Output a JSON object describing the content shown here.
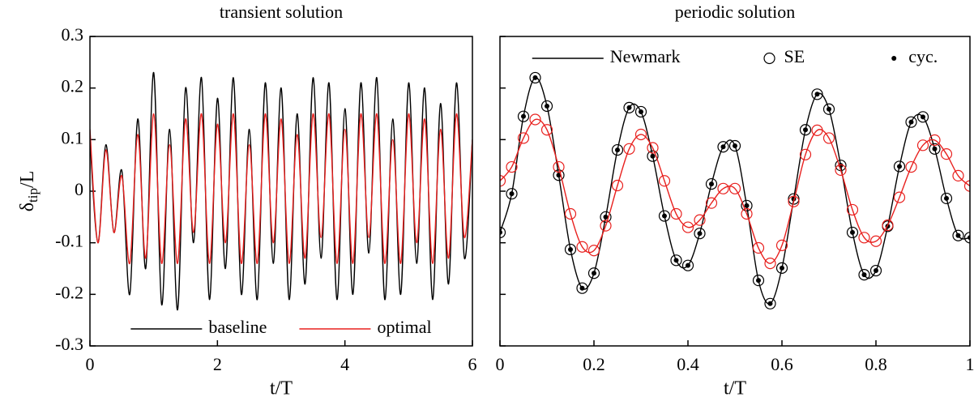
{
  "chart_data": [
    {
      "type": "line",
      "title": "transient solution",
      "xlabel": "t/T",
      "ylabel": {
        "symbol": "δ",
        "sub": "tip",
        "rest": "/L"
      },
      "xlim": [
        0,
        6
      ],
      "xticks": [
        0,
        2,
        4,
        6
      ],
      "ylim": [
        -0.3,
        0.3
      ],
      "yticks": [
        -0.3,
        -0.2,
        -0.1,
        0,
        0.1,
        0.2,
        0.3
      ],
      "legend": "lower center",
      "x": [
        0,
        0.125,
        0.25,
        0.375,
        0.5,
        0.625,
        0.75,
        0.875,
        1,
        1.125,
        1.25,
        1.375,
        1.5,
        1.625,
        1.75,
        1.875,
        2,
        2.125,
        2.25,
        2.375,
        2.5,
        2.625,
        2.75,
        2.875,
        3,
        3.125,
        3.25,
        3.375,
        3.5,
        3.625,
        3.75,
        3.875,
        4,
        4.125,
        4.25,
        4.375,
        4.5,
        4.625,
        4.75,
        4.875,
        5,
        5.125,
        5.25,
        5.375,
        5.5,
        5.625,
        5.75,
        5.875,
        6
      ],
      "series": [
        {
          "name": "baseline",
          "color": "#000000",
          "style": "line",
          "values": [
            0.1,
            -0.1,
            0.09,
            -0.08,
            0.04,
            -0.2,
            0.14,
            -0.15,
            0.23,
            -0.22,
            0.12,
            -0.23,
            0.2,
            -0.1,
            0.22,
            -0.21,
            0.18,
            -0.15,
            0.22,
            -0.2,
            0.12,
            -0.21,
            0.21,
            -0.14,
            0.2,
            -0.21,
            0.15,
            -0.18,
            0.22,
            -0.13,
            0.21,
            -0.21,
            0.16,
            -0.2,
            0.21,
            -0.12,
            0.22,
            -0.21,
            0.14,
            -0.2,
            0.21,
            -0.14,
            0.2,
            -0.21,
            0.17,
            -0.18,
            0.21,
            -0.13,
            0.1
          ]
        },
        {
          "name": "optimal",
          "color": "#e8201e",
          "style": "line",
          "values": [
            0.12,
            -0.1,
            0.08,
            -0.08,
            0.03,
            -0.14,
            0.11,
            -0.13,
            0.15,
            -0.14,
            0.09,
            -0.14,
            0.14,
            -0.08,
            0.15,
            -0.14,
            0.13,
            -0.1,
            0.15,
            -0.14,
            0.09,
            -0.14,
            0.15,
            -0.1,
            0.14,
            -0.14,
            0.11,
            -0.13,
            0.15,
            -0.09,
            0.15,
            -0.14,
            0.12,
            -0.14,
            0.15,
            -0.09,
            0.15,
            -0.14,
            0.1,
            -0.14,
            0.15,
            -0.1,
            0.14,
            -0.14,
            0.12,
            -0.13,
            0.15,
            -0.09,
            0.1
          ]
        }
      ]
    },
    {
      "type": "line",
      "title": "periodic solution",
      "xlabel": "t/T",
      "xlim": [
        0,
        1
      ],
      "xticks": [
        0,
        0.2,
        0.4,
        0.6,
        0.8,
        1
      ],
      "ylim": [
        -0.3,
        0.3
      ],
      "yticks": [
        -0.3,
        -0.2,
        -0.1,
        0,
        0.1,
        0.2,
        0.3
      ],
      "ytick_labels": false,
      "legend": "upper center",
      "x": [
        0,
        0.025,
        0.05,
        0.075,
        0.1,
        0.125,
        0.15,
        0.175,
        0.2,
        0.225,
        0.25,
        0.275,
        0.3,
        0.325,
        0.35,
        0.375,
        0.4,
        0.425,
        0.45,
        0.475,
        0.5,
        0.525,
        0.55,
        0.575,
        0.6,
        0.625,
        0.65,
        0.675,
        0.7,
        0.725,
        0.75,
        0.775,
        0.8,
        0.825,
        0.85,
        0.875,
        0.9,
        0.925,
        0.95,
        0.975,
        1
      ],
      "series": [
        {
          "name": "Newmark",
          "color": "#000000",
          "style": "line",
          "values": [
            -0.08,
            -0.005,
            0.145,
            0.22,
            0.165,
            0.031,
            -0.113,
            -0.188,
            -0.159,
            -0.05,
            0.08,
            0.162,
            0.154,
            0.068,
            -0.048,
            -0.134,
            -0.144,
            -0.082,
            0.014,
            0.086,
            0.088,
            -0.028,
            -0.173,
            -0.218,
            -0.149,
            -0.015,
            0.119,
            0.188,
            0.159,
            0.05,
            -0.08,
            -0.162,
            -0.154,
            -0.068,
            0.048,
            0.134,
            0.144,
            0.082,
            -0.014,
            -0.086,
            -0.09
          ]
        },
        {
          "name": "SE",
          "color": "#000000",
          "style": "circle",
          "values": [
            -0.08,
            -0.005,
            0.145,
            0.22,
            0.165,
            0.031,
            -0.113,
            -0.188,
            -0.159,
            -0.05,
            0.08,
            0.162,
            0.154,
            0.068,
            -0.048,
            -0.134,
            -0.144,
            -0.082,
            0.014,
            0.086,
            0.088,
            -0.028,
            -0.173,
            -0.218,
            -0.149,
            -0.015,
            0.119,
            0.188,
            0.159,
            0.05,
            -0.08,
            -0.162,
            -0.154,
            -0.068,
            0.048,
            0.134,
            0.144,
            0.082,
            -0.014,
            -0.086,
            -0.09
          ]
        },
        {
          "name": "cyc.",
          "color": "#000000",
          "style": "dot",
          "values": [
            -0.08,
            -0.005,
            0.145,
            0.22,
            0.165,
            0.031,
            -0.113,
            -0.188,
            -0.159,
            -0.05,
            0.08,
            0.162,
            0.154,
            0.068,
            -0.048,
            -0.134,
            -0.144,
            -0.082,
            0.014,
            0.086,
            0.088,
            -0.028,
            -0.173,
            -0.218,
            -0.149,
            -0.015,
            0.119,
            0.188,
            0.159,
            0.05,
            -0.08,
            -0.162,
            -0.154,
            -0.068,
            0.048,
            0.134,
            0.144,
            0.082,
            -0.014,
            -0.086,
            -0.09
          ]
        },
        {
          "color": "#e8201e",
          "style": "line",
          "values": [
            0.02,
            0.047,
            0.103,
            0.139,
            0.119,
            0.047,
            -0.044,
            -0.108,
            -0.115,
            -0.067,
            0.011,
            0.082,
            0.11,
            0.084,
            0.02,
            -0.044,
            -0.07,
            -0.056,
            -0.023,
            0.005,
            0.005,
            -0.044,
            -0.11,
            -0.14,
            -0.105,
            -0.02,
            0.071,
            0.118,
            0.103,
            0.041,
            -0.036,
            -0.09,
            -0.097,
            -0.066,
            -0.012,
            0.047,
            0.089,
            0.099,
            0.072,
            0.03,
            0.01
          ]
        },
        {
          "color": "#e8201e",
          "style": "circle",
          "values": [
            0.02,
            0.047,
            0.103,
            0.139,
            0.119,
            0.047,
            -0.044,
            -0.108,
            -0.115,
            -0.067,
            0.011,
            0.082,
            0.11,
            0.084,
            0.02,
            -0.044,
            -0.07,
            -0.056,
            -0.023,
            0.005,
            0.005,
            -0.044,
            -0.11,
            -0.14,
            -0.105,
            -0.02,
            0.071,
            0.118,
            0.103,
            0.041,
            -0.036,
            -0.09,
            -0.097,
            -0.066,
            -0.012,
            0.047,
            0.089,
            0.099,
            0.072,
            0.03,
            0.01
          ]
        }
      ]
    }
  ]
}
